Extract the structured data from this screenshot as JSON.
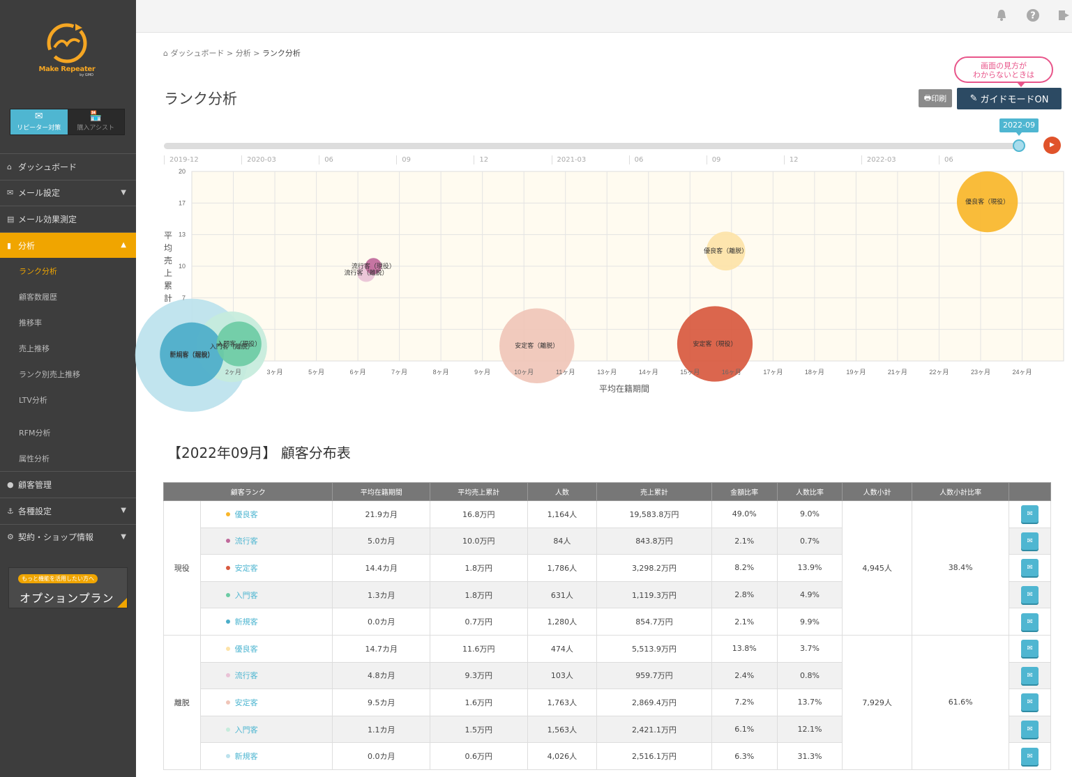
{
  "app": {
    "logo_text": "Make Repeater",
    "logo_sub": "by GMO"
  },
  "mode_tabs": [
    {
      "label": "リピーター対策",
      "icon": "envelope-icon"
    },
    {
      "label": "購入アシスト",
      "icon": "shop-icon"
    }
  ],
  "nav": {
    "dashboard": "ダッシュボード",
    "mail_settings": "メール設定",
    "mail_effect": "メール効果測定",
    "analysis": "分析",
    "sub": [
      "ランク分析",
      "顧客数履歴",
      "推移率",
      "売上推移",
      "ランク別売上推移",
      "LTV分析",
      "RFM分析",
      "属性分析"
    ],
    "customer": "顧客管理",
    "settings": "各種設定",
    "contract": "契約・ショップ情報"
  },
  "option": {
    "pill": "もっと機能を活用したい方へ",
    "title": "オプションプラン"
  },
  "breadcrumb": {
    "home": "ダッシュボード",
    "sep1": ">",
    "level2": "分析",
    "sep2": ">",
    "current": "ランク分析"
  },
  "page_title": "ランク分析",
  "guide_bubble": {
    "line1": "画面の見方が",
    "line2": "わからないときは"
  },
  "print_label": "印刷",
  "guide_label": "ガイドモードON",
  "slider": {
    "current": "2022-09",
    "ticks": [
      "2019-12",
      "2020-03",
      "06",
      "09",
      "12",
      "2021-03",
      "06",
      "09",
      "12",
      "2022-03",
      "06"
    ]
  },
  "colors": {
    "yushu_active": "#f9b62a",
    "yushu_churn": "#fde3a8",
    "ryuko_active": "#c0699b",
    "ryuko_churn": "#e9c2d6",
    "antei_active": "#d8593f",
    "antei_churn": "#f0c5b8",
    "nyumon_active": "#6ccba4",
    "nyumon_churn": "#c6ecdc",
    "shinki_active": "#4cadc9",
    "shinki_churn": "#bce2ed"
  },
  "chart_data": {
    "type": "scatter",
    "title": "",
    "xlabel": "平均在籍期間",
    "ylabel": "平均売上累計",
    "xlim": [
      0,
      24
    ],
    "ylim": [
      0,
      20
    ],
    "x_ticks": [
      "2ヶ月",
      "3ヶ月",
      "5ヶ月",
      "6ヶ月",
      "7ヶ月",
      "8ヶ月",
      "9ヶ月",
      "10ヶ月",
      "11ヶ月",
      "13ヶ月",
      "14ヶ月",
      "15ヶ月",
      "16ヶ月",
      "17ヶ月",
      "18ヶ月",
      "19ヶ月",
      "21ヶ月",
      "22ヶ月",
      "23ヶ月",
      "24ヶ月"
    ],
    "y_ticks": [
      "20",
      "17",
      "13",
      "10",
      "7"
    ],
    "series": [
      {
        "name": "優良客（現役）",
        "x": 21.9,
        "y": 16.8,
        "size": 1164,
        "color": "#f9b62a"
      },
      {
        "name": "流行客（現役）",
        "x": 5.0,
        "y": 10.0,
        "size": 84,
        "color": "#c0699b"
      },
      {
        "name": "安定客（現役）",
        "x": 14.4,
        "y": 1.8,
        "size": 1786,
        "color": "#d8593f"
      },
      {
        "name": "入門客（現役）",
        "x": 1.3,
        "y": 1.8,
        "size": 631,
        "color": "#6ccba4"
      },
      {
        "name": "新規客（現役）",
        "x": 0.0,
        "y": 0.7,
        "size": 1280,
        "color": "#4cadc9"
      },
      {
        "name": "優良客（離脱）",
        "x": 14.7,
        "y": 11.6,
        "size": 474,
        "color": "#fde3a8"
      },
      {
        "name": "流行客（離脱）",
        "x": 4.8,
        "y": 9.3,
        "size": 103,
        "color": "#e9c2d6"
      },
      {
        "name": "安定客（離脱）",
        "x": 9.5,
        "y": 1.6,
        "size": 1763,
        "color": "#f0c5b8"
      },
      {
        "name": "入門客（離脱）",
        "x": 1.1,
        "y": 1.5,
        "size": 1563,
        "color": "#c6ecdc"
      },
      {
        "name": "新規客（離脱）",
        "x": 0.0,
        "y": 0.6,
        "size": 4026,
        "color": "#bce2ed"
      }
    ]
  },
  "table": {
    "title": "【2022年09月】 顧客分布表",
    "headers": [
      "顧客ランク",
      "平均在籍期間",
      "平均売上累計",
      "人数",
      "売上累計",
      "金額比率",
      "人数比率",
      "人数小計",
      "人数小計比率",
      ""
    ],
    "groups": [
      {
        "label": "現役",
        "subtotal": "4,945人",
        "subtotal_ratio": "38.4%",
        "rows": [
          {
            "rank": "優良客",
            "color": "#f9b62a",
            "period": "21.9カ月",
            "avg_sales": "16.8万円",
            "count": "1,164人",
            "sales": "19,583.8万円",
            "amount_ratio": "49.0%",
            "count_ratio": "9.0%"
          },
          {
            "rank": "流行客",
            "color": "#c0699b",
            "period": "5.0カ月",
            "avg_sales": "10.0万円",
            "count": "84人",
            "sales": "843.8万円",
            "amount_ratio": "2.1%",
            "count_ratio": "0.7%"
          },
          {
            "rank": "安定客",
            "color": "#d8593f",
            "period": "14.4カ月",
            "avg_sales": "1.8万円",
            "count": "1,786人",
            "sales": "3,298.2万円",
            "amount_ratio": "8.2%",
            "count_ratio": "13.9%"
          },
          {
            "rank": "入門客",
            "color": "#6ccba4",
            "period": "1.3カ月",
            "avg_sales": "1.8万円",
            "count": "631人",
            "sales": "1,119.3万円",
            "amount_ratio": "2.8%",
            "count_ratio": "4.9%"
          },
          {
            "rank": "新規客",
            "color": "#4cadc9",
            "period": "0.0カ月",
            "avg_sales": "0.7万円",
            "count": "1,280人",
            "sales": "854.7万円",
            "amount_ratio": "2.1%",
            "count_ratio": "9.9%"
          }
        ]
      },
      {
        "label": "離脱",
        "subtotal": "7,929人",
        "subtotal_ratio": "61.6%",
        "rows": [
          {
            "rank": "優良客",
            "color": "#fde3a8",
            "period": "14.7カ月",
            "avg_sales": "11.6万円",
            "count": "474人",
            "sales": "5,513.9万円",
            "amount_ratio": "13.8%",
            "count_ratio": "3.7%"
          },
          {
            "rank": "流行客",
            "color": "#e9c2d6",
            "period": "4.8カ月",
            "avg_sales": "9.3万円",
            "count": "103人",
            "sales": "959.7万円",
            "amount_ratio": "2.4%",
            "count_ratio": "0.8%"
          },
          {
            "rank": "安定客",
            "color": "#f0c5b8",
            "period": "9.5カ月",
            "avg_sales": "1.6万円",
            "count": "1,763人",
            "sales": "2,869.4万円",
            "amount_ratio": "7.2%",
            "count_ratio": "13.7%"
          },
          {
            "rank": "入門客",
            "color": "#c6ecdc",
            "period": "1.1カ月",
            "avg_sales": "1.5万円",
            "count": "1,563人",
            "sales": "2,421.1万円",
            "amount_ratio": "6.1%",
            "count_ratio": "12.1%"
          },
          {
            "rank": "新規客",
            "color": "#bce2ed",
            "period": "0.0カ月",
            "avg_sales": "0.6万円",
            "count": "4,026人",
            "sales": "2,516.1万円",
            "amount_ratio": "6.3%",
            "count_ratio": "31.3%"
          }
        ]
      }
    ]
  }
}
